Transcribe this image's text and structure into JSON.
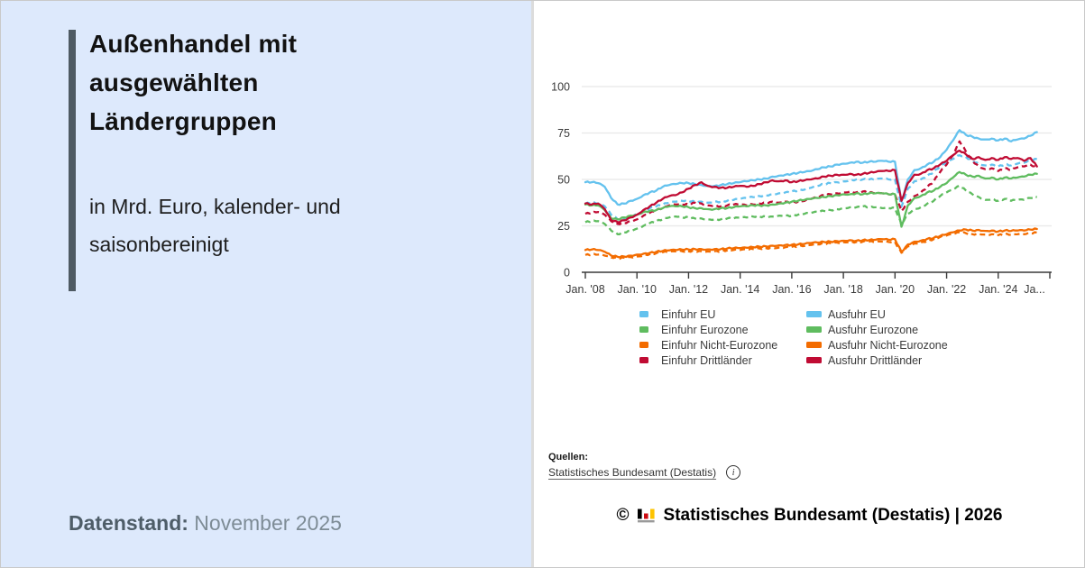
{
  "left_panel": {
    "title": "Außenhandel mit ausgewählten Ländergruppen",
    "subtitle": "in Mrd. Euro, kalender- und saisonbereinigt",
    "datenstand_label": "Datenstand:",
    "datenstand_value": "November 2025"
  },
  "right_panel": {
    "sources_label": "Quellen:",
    "source_link_text": "Statistisches Bundesamt (Destatis)",
    "info_icon": "info-icon",
    "copyright_symbol": "©",
    "copyright_text": "Statistisches Bundesamt (Destatis) | 2026"
  },
  "colors": {
    "eu_blue": "#64c2ee",
    "eurozone_green": "#5fbc5f",
    "nicht_eurozone_orange": "#f36c00",
    "drittlaender_red": "#c00b33",
    "grid": "#e8e8e8",
    "axis": "#3a3a3a",
    "left_panel_bg": "#dde9fc",
    "accent_bar": "#4e5a63"
  },
  "chart_data": {
    "type": "line",
    "title": "Außenhandel mit ausgewählten Ländergruppen",
    "ylabel": "Mrd. Euro",
    "ylim": [
      0,
      100
    ],
    "yticks": [
      0,
      25,
      50,
      75,
      100
    ],
    "grid": true,
    "legend_position": "bottom",
    "x_start_year": 2008,
    "x_step_years": 0.25,
    "x_axis_max_year": 2026,
    "xticks": [
      {
        "year": 2008,
        "label": "Jan. '08"
      },
      {
        "year": 2010,
        "label": "Jan. '10"
      },
      {
        "year": 2012,
        "label": "Jan. '12"
      },
      {
        "year": 2014,
        "label": "Jan. '14"
      },
      {
        "year": 2016,
        "label": "Jan. '16"
      },
      {
        "year": 2018,
        "label": "Jan. '18"
      },
      {
        "year": 2020,
        "label": "Jan. '20"
      },
      {
        "year": 2022,
        "label": "Jan. '22"
      },
      {
        "year": 2024,
        "label": "Jan. '24"
      },
      {
        "year": 2026,
        "label": "Ja..."
      }
    ],
    "series": [
      {
        "name": "Einfuhr EU",
        "color": "#64c2ee",
        "style": "dashed",
        "values": [
          37,
          37.5,
          37,
          35.5,
          31,
          28.5,
          29,
          30,
          31.5,
          33,
          34.5,
          35.5,
          36.5,
          37.5,
          38,
          38.5,
          38.5,
          38,
          38,
          37.5,
          38,
          38,
          38.5,
          39,
          39.5,
          40,
          40.5,
          41,
          41.5,
          42,
          42.5,
          43,
          43.5,
          44,
          44.5,
          45.5,
          46.5,
          47.5,
          48,
          48.5,
          49,
          49.5,
          50,
          50,
          50,
          50,
          50.5,
          50,
          50,
          35.5,
          45,
          49,
          50,
          52,
          54,
          57,
          59,
          61,
          63,
          62,
          60,
          58.5,
          57.5,
          58,
          57,
          58,
          57.5,
          58.5,
          59,
          60,
          61
        ]
      },
      {
        "name": "Einfuhr Eurozone",
        "color": "#5fbc5f",
        "style": "dashed",
        "values": [
          27,
          27.5,
          27.5,
          26,
          22.5,
          20.5,
          21.5,
          22.5,
          23.5,
          25,
          26.5,
          27.5,
          28.5,
          29.5,
          30,
          29.5,
          29.5,
          29,
          29,
          28.5,
          28.5,
          28.5,
          29,
          29,
          29.5,
          29.5,
          30,
          30,
          30,
          30,
          30.5,
          30.5,
          30.5,
          31,
          31.5,
          32,
          32.5,
          33,
          33.5,
          34,
          34.5,
          35,
          35,
          35.5,
          35,
          35,
          34.5,
          34.5,
          34.5,
          26,
          31.5,
          34,
          35,
          37,
          38.5,
          41,
          43,
          44.5,
          46.5,
          44,
          42,
          40.5,
          39,
          39.5,
          38.5,
          39.5,
          38.5,
          39,
          39,
          40,
          40.5
        ]
      },
      {
        "name": "Einfuhr Nicht-Eurozone",
        "color": "#f36c00",
        "style": "dashed",
        "values": [
          9.3,
          9.5,
          9.5,
          9,
          8,
          7.5,
          7.8,
          8.2,
          8.5,
          9.2,
          9.8,
          10.3,
          10.8,
          11,
          11.2,
          11.3,
          11.3,
          11.5,
          11.3,
          11.2,
          11.3,
          11.5,
          11.8,
          12,
          12,
          12.2,
          12.5,
          12.8,
          13,
          13.2,
          13.3,
          13.5,
          13.7,
          14,
          14.2,
          14.7,
          15,
          15.3,
          15.7,
          16,
          16.2,
          16.5,
          16.3,
          16.5,
          16.5,
          16.3,
          16.5,
          16.3,
          16.3,
          10.5,
          14,
          15.5,
          16,
          17,
          17.8,
          19,
          19.8,
          20.5,
          21.5,
          21,
          20.5,
          20.8,
          20.3,
          20.5,
          20,
          20.5,
          20.2,
          20.5,
          20.5,
          21,
          21.3
        ]
      },
      {
        "name": "Einfuhr Drittländer",
        "color": "#c00b33",
        "style": "dashed",
        "values": [
          31.5,
          32,
          32.5,
          31,
          27.5,
          26,
          26.5,
          27.5,
          28.5,
          30.5,
          32,
          33.5,
          34.5,
          36,
          36.5,
          36.5,
          36.5,
          37.5,
          37,
          36,
          36,
          35.5,
          36,
          36.5,
          36.5,
          36,
          36.5,
          37,
          37.5,
          38,
          37.5,
          38,
          37.5,
          38,
          38.5,
          39.5,
          40.5,
          41.5,
          42,
          42.5,
          43,
          43.5,
          43,
          43.5,
          43,
          42.5,
          42.5,
          42,
          42,
          33,
          38,
          41,
          43,
          46,
          49,
          54,
          58,
          63,
          70.5,
          65,
          60,
          57,
          55.5,
          56,
          54.5,
          56,
          55,
          56.5,
          57,
          58,
          56
        ]
      },
      {
        "name": "Ausfuhr EU",
        "color": "#64c2ee",
        "style": "solid",
        "values": [
          48.5,
          48.5,
          48,
          46,
          40,
          36.5,
          37,
          38.5,
          39.5,
          41.5,
          43,
          44,
          46,
          47,
          47.5,
          48,
          48,
          47.5,
          47,
          46.5,
          46.5,
          47,
          47.5,
          48,
          48.5,
          49,
          49.5,
          50,
          50.5,
          51.5,
          52,
          52.5,
          53,
          53.5,
          54,
          54.5,
          55.5,
          56.5,
          57,
          58,
          58.5,
          59,
          59.5,
          59,
          59.5,
          59.5,
          60,
          59.5,
          59.5,
          38,
          50,
          55,
          56,
          58,
          59.5,
          62,
          66,
          71,
          76.5,
          74,
          73,
          72,
          71.5,
          72,
          71,
          72,
          70.5,
          71.5,
          72,
          73.5,
          75.5
        ]
      },
      {
        "name": "Ausfuhr Eurozone",
        "color": "#5fbc5f",
        "style": "solid",
        "values": [
          36.5,
          36,
          36,
          33.5,
          29,
          28.5,
          29.5,
          30.5,
          31,
          32.5,
          33,
          33.5,
          34.5,
          35.5,
          35.5,
          35.5,
          35,
          34.5,
          34.5,
          34,
          34,
          34.5,
          34.5,
          35,
          35.5,
          35.5,
          36,
          36,
          36,
          36.5,
          37,
          37.5,
          38,
          38.5,
          39,
          39.5,
          40,
          40.5,
          41,
          41.5,
          42,
          42,
          42.5,
          42,
          42.5,
          42.5,
          42.5,
          42,
          42,
          24.5,
          36,
          40,
          41,
          43,
          44,
          46,
          48,
          51,
          54,
          52.5,
          51.5,
          52,
          50.5,
          51,
          50,
          51,
          50.5,
          51,
          51.5,
          52.5,
          53
        ]
      },
      {
        "name": "Ausfuhr Nicht-Eurozone",
        "color": "#f36c00",
        "style": "solid",
        "values": [
          12,
          12.3,
          12,
          11,
          9,
          8.3,
          8.5,
          9,
          9.5,
          10,
          10.5,
          11,
          11.5,
          11.8,
          12,
          12.2,
          12.3,
          12.5,
          12.5,
          12.3,
          12.5,
          12.5,
          12.8,
          13,
          13,
          13.2,
          13.5,
          13.8,
          14,
          14.3,
          14.5,
          14.7,
          14.8,
          15,
          15.3,
          15.8,
          16,
          16.3,
          16.5,
          16.8,
          17,
          17.3,
          17,
          17.3,
          17.3,
          17.5,
          17.8,
          17.5,
          17.8,
          11,
          15,
          16.5,
          17,
          18,
          18.5,
          19.5,
          20.5,
          21.5,
          22.5,
          23,
          22.5,
          22.8,
          22.3,
          22.5,
          22,
          22.5,
          22.3,
          22.5,
          22.5,
          23,
          23.3
        ]
      },
      {
        "name": "Ausfuhr Drittländer",
        "color": "#c00b33",
        "style": "solid",
        "values": [
          37,
          36.5,
          37,
          34,
          28,
          27,
          28,
          29.5,
          31,
          33.5,
          35.5,
          37.5,
          39.5,
          41,
          41.5,
          43,
          45,
          47,
          48.5,
          46.5,
          46,
          45.5,
          45.5,
          46,
          46.5,
          46,
          46.5,
          47.5,
          48.5,
          49.5,
          49,
          49.5,
          48.5,
          49,
          49.5,
          50,
          50.5,
          51.5,
          52,
          52.5,
          52.5,
          53,
          52.5,
          53,
          53.5,
          54,
          54.5,
          54.5,
          55,
          38.5,
          48,
          52.5,
          53,
          55,
          56,
          58,
          60,
          63,
          65.5,
          63.5,
          61,
          62,
          60.5,
          61.5,
          60.5,
          62,
          61,
          61.5,
          60,
          61.5,
          57
        ]
      }
    ]
  }
}
